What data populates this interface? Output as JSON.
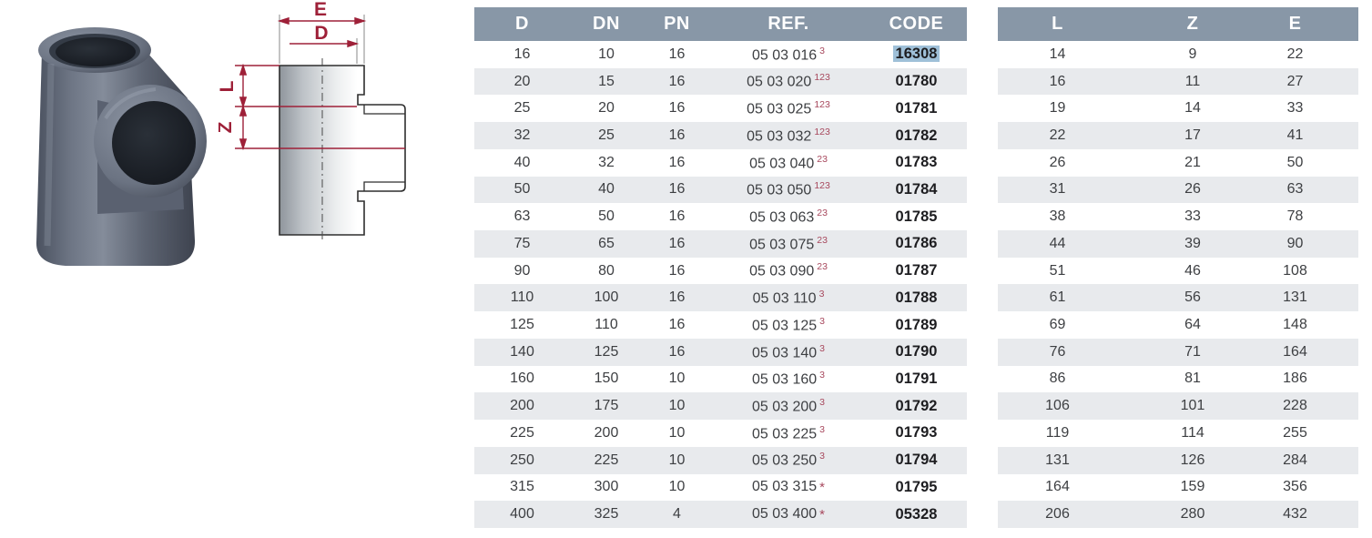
{
  "page": {
    "background": "#ffffff"
  },
  "colors": {
    "table_header_bg": "#8897a7",
    "row_alt_bg": "#e8eaed",
    "dimension_accent": "#9e2038",
    "footnote_marker": "#a8495e",
    "code_highlight_bg": "#9fc0d8",
    "body_text": "#3d3f42"
  },
  "diagram": {
    "labels": {
      "E": "E",
      "D": "D",
      "L": "L",
      "Z": "Z"
    }
  },
  "table1": {
    "headers": [
      "D",
      "DN",
      "PN",
      "REF.",
      "CODE"
    ],
    "rows": [
      {
        "d": "16",
        "dn": "10",
        "pn": "16",
        "ref": "05 03 016",
        "sup": "3",
        "code": "16308",
        "highlight": true
      },
      {
        "d": "20",
        "dn": "15",
        "pn": "16",
        "ref": "05 03 020",
        "sup": "123",
        "code": "01780",
        "highlight": false
      },
      {
        "d": "25",
        "dn": "20",
        "pn": "16",
        "ref": "05 03 025",
        "sup": "123",
        "code": "01781",
        "highlight": false
      },
      {
        "d": "32",
        "dn": "25",
        "pn": "16",
        "ref": "05 03 032",
        "sup": "123",
        "code": "01782",
        "highlight": false
      },
      {
        "d": "40",
        "dn": "32",
        "pn": "16",
        "ref": "05 03 040",
        "sup": "23",
        "code": "01783",
        "highlight": false
      },
      {
        "d": "50",
        "dn": "40",
        "pn": "16",
        "ref": "05 03 050",
        "sup": "123",
        "code": "01784",
        "highlight": false
      },
      {
        "d": "63",
        "dn": "50",
        "pn": "16",
        "ref": "05 03 063",
        "sup": "23",
        "code": "01785",
        "highlight": false
      },
      {
        "d": "75",
        "dn": "65",
        "pn": "16",
        "ref": "05 03 075",
        "sup": "23",
        "code": "01786",
        "highlight": false
      },
      {
        "d": "90",
        "dn": "80",
        "pn": "16",
        "ref": "05 03 090",
        "sup": "23",
        "code": "01787",
        "highlight": false
      },
      {
        "d": "110",
        "dn": "100",
        "pn": "16",
        "ref": "05 03 110",
        "sup": "3",
        "code": "01788",
        "highlight": false
      },
      {
        "d": "125",
        "dn": "110",
        "pn": "16",
        "ref": "05 03 125",
        "sup": "3",
        "code": "01789",
        "highlight": false
      },
      {
        "d": "140",
        "dn": "125",
        "pn": "16",
        "ref": "05 03 140",
        "sup": "3",
        "code": "01790",
        "highlight": false
      },
      {
        "d": "160",
        "dn": "150",
        "pn": "10",
        "ref": "05 03 160",
        "sup": "3",
        "code": "01791",
        "highlight": false
      },
      {
        "d": "200",
        "dn": "175",
        "pn": "10",
        "ref": "05 03 200",
        "sup": "3",
        "code": "01792",
        "highlight": false
      },
      {
        "d": "225",
        "dn": "200",
        "pn": "10",
        "ref": "05 03 225",
        "sup": "3",
        "code": "01793",
        "highlight": false
      },
      {
        "d": "250",
        "dn": "225",
        "pn": "10",
        "ref": "05 03 250",
        "sup": "3",
        "code": "01794",
        "highlight": false
      },
      {
        "d": "315",
        "dn": "300",
        "pn": "10",
        "ref": "05 03 315",
        "sup": "*",
        "code": "01795",
        "highlight": false
      },
      {
        "d": "400",
        "dn": "325",
        "pn": "4",
        "ref": "05 03 400",
        "sup": "*",
        "code": "05328",
        "highlight": false
      }
    ]
  },
  "table2": {
    "headers": [
      "L",
      "Z",
      "E"
    ],
    "rows": [
      [
        "14",
        "9",
        "22"
      ],
      [
        "16",
        "11",
        "27"
      ],
      [
        "19",
        "14",
        "33"
      ],
      [
        "22",
        "17",
        "41"
      ],
      [
        "26",
        "21",
        "50"
      ],
      [
        "31",
        "26",
        "63"
      ],
      [
        "38",
        "33",
        "78"
      ],
      [
        "44",
        "39",
        "90"
      ],
      [
        "51",
        "46",
        "108"
      ],
      [
        "61",
        "56",
        "131"
      ],
      [
        "69",
        "64",
        "148"
      ],
      [
        "76",
        "71",
        "164"
      ],
      [
        "86",
        "81",
        "186"
      ],
      [
        "106",
        "101",
        "228"
      ],
      [
        "119",
        "114",
        "255"
      ],
      [
        "131",
        "126",
        "284"
      ],
      [
        "164",
        "159",
        "356"
      ],
      [
        "206",
        "280",
        "432"
      ]
    ]
  }
}
